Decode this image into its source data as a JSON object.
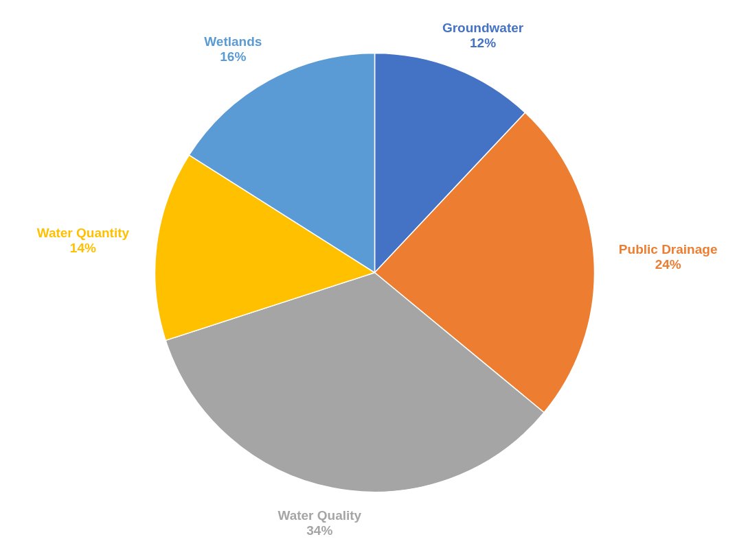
{
  "chart_data": {
    "type": "pie",
    "categories": [
      "Groundwater",
      "Public Drainage",
      "Water Quality",
      "Water Quantity",
      "Wetlands"
    ],
    "values": [
      12,
      24,
      34,
      14,
      16
    ],
    "colors": [
      "#4472c4",
      "#ed7d31",
      "#a5a5a5",
      "#ffc000",
      "#5b9bd5"
    ],
    "value_labels": [
      "12%",
      "24%",
      "34%",
      "14%",
      "16%"
    ]
  }
}
